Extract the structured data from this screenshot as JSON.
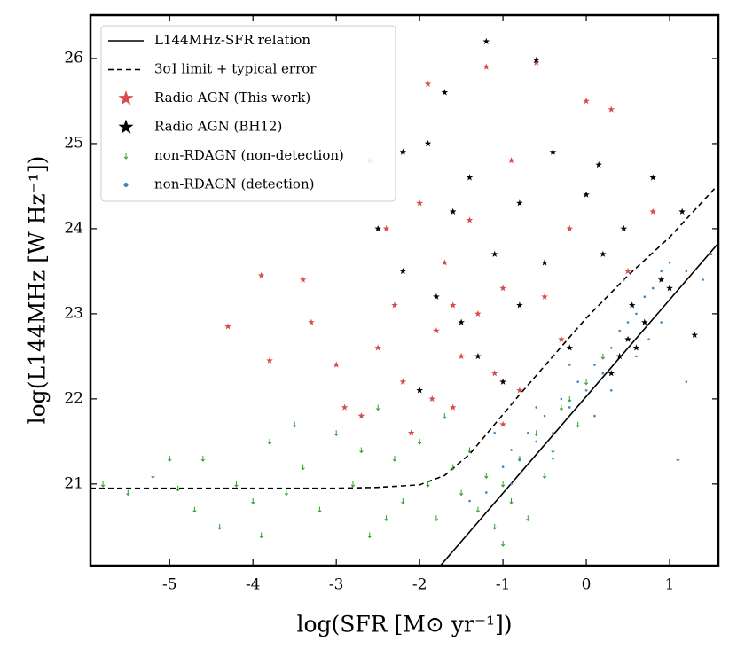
{
  "chart_data": {
    "type": "scatter",
    "xlabel": "log(SFR [M⊙ yr⁻¹])",
    "ylabel": "log(L144MHz [W Hz⁻¹])",
    "xlim": [
      -5.95,
      1.585
    ],
    "ylim": [
      20.04,
      26.51
    ],
    "xticks": [
      -5,
      -4,
      -3,
      -2,
      -1,
      0,
      1
    ],
    "yticks": [
      21,
      22,
      23,
      24,
      25,
      26
    ],
    "legend": "upper left",
    "series": [
      {
        "name": "L144MHz-SFR relation",
        "color": "#000000",
        "line": "solid",
        "x": [
          -1.75,
          1.585
        ],
        "values": [
          20.04,
          23.83
        ]
      },
      {
        "name": "3σI limit + typical error",
        "color": "#000000",
        "line": "dashed",
        "x": [
          -5.95,
          -3,
          -2.5,
          -2,
          -1.7,
          -1.4,
          -1.1,
          -0.8,
          -0.4,
          0,
          0.5,
          1,
          1.585
        ],
        "values": [
          20.95,
          20.95,
          20.96,
          20.99,
          21.1,
          21.35,
          21.7,
          22.05,
          22.5,
          22.95,
          23.45,
          23.9,
          24.52
        ]
      },
      {
        "name": "Radio AGN (This work)",
        "color": "#d94a4a",
        "marker": "star",
        "x": [
          -4.3,
          -3.9,
          -3.8,
          -3.4,
          -3.3,
          -3.0,
          -2.9,
          -2.7,
          -2.5,
          -2.3,
          -2.2,
          -2.1,
          -2.0,
          -1.9,
          -1.8,
          -1.7,
          -1.6,
          -1.5,
          -1.4,
          -1.3,
          -1.2,
          -1.1,
          -1.0,
          -0.9,
          -0.8,
          -0.6,
          -0.5,
          -0.3,
          0.0,
          0.3,
          0.5,
          0.8,
          -1.85,
          -2.4,
          -1.6,
          -0.2,
          -2.6,
          -1.0
        ],
        "values": [
          22.85,
          23.45,
          22.45,
          23.4,
          22.9,
          22.4,
          21.9,
          21.8,
          22.6,
          23.1,
          22.2,
          21.6,
          24.3,
          25.7,
          22.8,
          23.6,
          21.9,
          22.5,
          24.1,
          23.0,
          25.9,
          22.3,
          23.3,
          24.8,
          22.1,
          25.95,
          23.2,
          22.7,
          25.5,
          25.4,
          23.5,
          24.2,
          22.0,
          24.0,
          23.1,
          24.0,
          24.8,
          21.7
        ]
      },
      {
        "name": "Radio AGN (BH12)",
        "color": "#000000",
        "marker": "star",
        "x": [
          -1.2,
          -0.6,
          -1.7,
          -1.9,
          -2.2,
          -1.4,
          -0.8,
          -0.4,
          0.15,
          0.0,
          0.8,
          1.15,
          -2.5,
          -2.2,
          -1.8,
          -1.5,
          -1.3,
          -1.0,
          -0.8,
          -0.5,
          -0.2,
          0.2,
          0.5,
          0.55,
          0.4,
          0.7,
          0.3,
          0.6,
          0.9,
          1.0,
          1.3,
          0.45,
          -2.0,
          -1.6,
          -1.1
        ],
        "values": [
          26.2,
          25.98,
          25.6,
          25.0,
          24.9,
          24.6,
          24.3,
          24.9,
          24.75,
          24.4,
          24.6,
          24.2,
          24.0,
          23.5,
          23.2,
          22.9,
          22.5,
          22.2,
          23.1,
          23.6,
          22.6,
          23.7,
          22.7,
          23.1,
          22.5,
          22.9,
          22.3,
          22.6,
          23.4,
          23.3,
          22.75,
          24.0,
          22.1,
          24.2,
          23.7
        ]
      },
      {
        "name": "non-RDAGN (non-detection)",
        "color": "#2ca02c",
        "marker": "arrow",
        "x": [
          -5.8,
          -5.5,
          -5.2,
          -4.9,
          -4.6,
          -4.4,
          -4.2,
          -4.0,
          -3.8,
          -3.6,
          -3.4,
          -3.2,
          -3.0,
          -2.8,
          -2.6,
          -2.5,
          -2.3,
          -2.2,
          -2.0,
          -1.9,
          -1.8,
          -1.7,
          -1.6,
          -1.5,
          -1.4,
          -1.3,
          -1.2,
          -1.1,
          -1.0,
          -0.9,
          -0.8,
          -0.7,
          -0.6,
          -0.5,
          -0.4,
          -0.3,
          -0.2,
          -0.1,
          0.0,
          0.2,
          -2.7,
          -3.5,
          -4.7,
          -5.0,
          -1.0,
          1.1,
          -3.9,
          -2.4
        ],
        "values": [
          21.0,
          20.9,
          21.1,
          20.95,
          21.3,
          20.5,
          21.0,
          20.8,
          21.5,
          20.9,
          21.2,
          20.7,
          21.6,
          21.0,
          20.4,
          21.9,
          21.3,
          20.8,
          21.5,
          21.0,
          20.6,
          21.8,
          21.2,
          20.9,
          21.4,
          20.7,
          21.1,
          20.5,
          21.0,
          20.8,
          21.3,
          20.6,
          21.6,
          21.1,
          21.4,
          21.9,
          22.0,
          21.7,
          22.2,
          22.5,
          21.4,
          21.7,
          20.7,
          21.3,
          20.3,
          21.3,
          20.4,
          20.6
        ]
      },
      {
        "name": "non-RDAGN (detection)",
        "color": "#3a86c0",
        "marker": "dot",
        "x": [
          -1.2,
          -1.0,
          -0.9,
          -0.8,
          -0.7,
          -0.6,
          -0.5,
          -0.4,
          -0.3,
          -0.2,
          -0.1,
          0.0,
          0.1,
          0.2,
          0.3,
          0.4,
          0.5,
          0.6,
          0.7,
          0.8,
          0.9,
          1.0,
          1.2,
          1.4,
          1.5,
          -1.4,
          -0.9,
          -0.6,
          -0.2,
          0.3,
          0.6,
          0.9,
          1.2,
          0.1,
          -0.4,
          -1.1,
          0.45,
          0.75
        ],
        "values": [
          20.9,
          21.2,
          21.4,
          21.3,
          21.6,
          21.5,
          21.8,
          21.6,
          22.0,
          21.9,
          22.2,
          22.1,
          22.4,
          22.3,
          22.6,
          22.8,
          22.9,
          23.0,
          23.2,
          23.3,
          23.5,
          23.6,
          23.5,
          23.4,
          23.7,
          20.8,
          21.0,
          21.9,
          22.4,
          22.1,
          22.5,
          22.9,
          22.2,
          21.8,
          21.3,
          21.6,
          23.4,
          22.7
        ]
      }
    ]
  }
}
